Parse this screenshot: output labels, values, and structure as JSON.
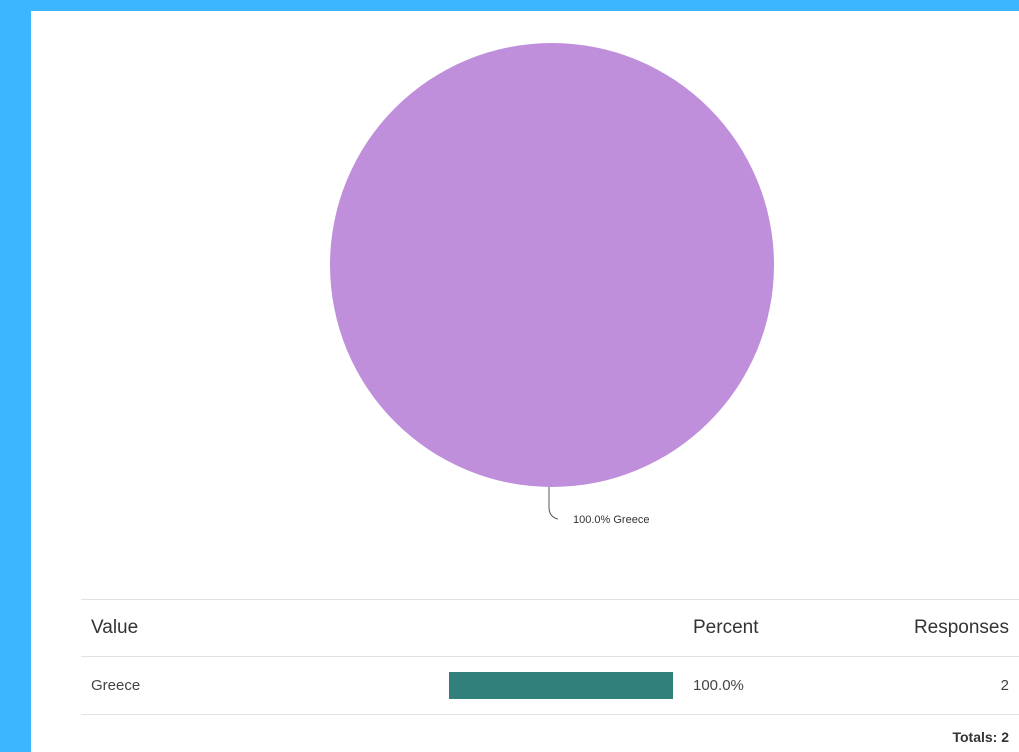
{
  "chart_data": {
    "type": "pie",
    "slices": [
      {
        "label": "Greece",
        "percent": 100.0,
        "value": 2,
        "color": "#bf8fdb"
      }
    ],
    "slice_labels": [
      "100.0% Greece"
    ]
  },
  "table": {
    "headers": {
      "value": "Value",
      "percent": "Percent",
      "responses": "Responses"
    },
    "rows": [
      {
        "value": "Greece",
        "percent": "100.0%",
        "responses": "2",
        "fraction": 1.0
      }
    ],
    "totals": "Totals: 2",
    "bar_color": "#31807b"
  }
}
